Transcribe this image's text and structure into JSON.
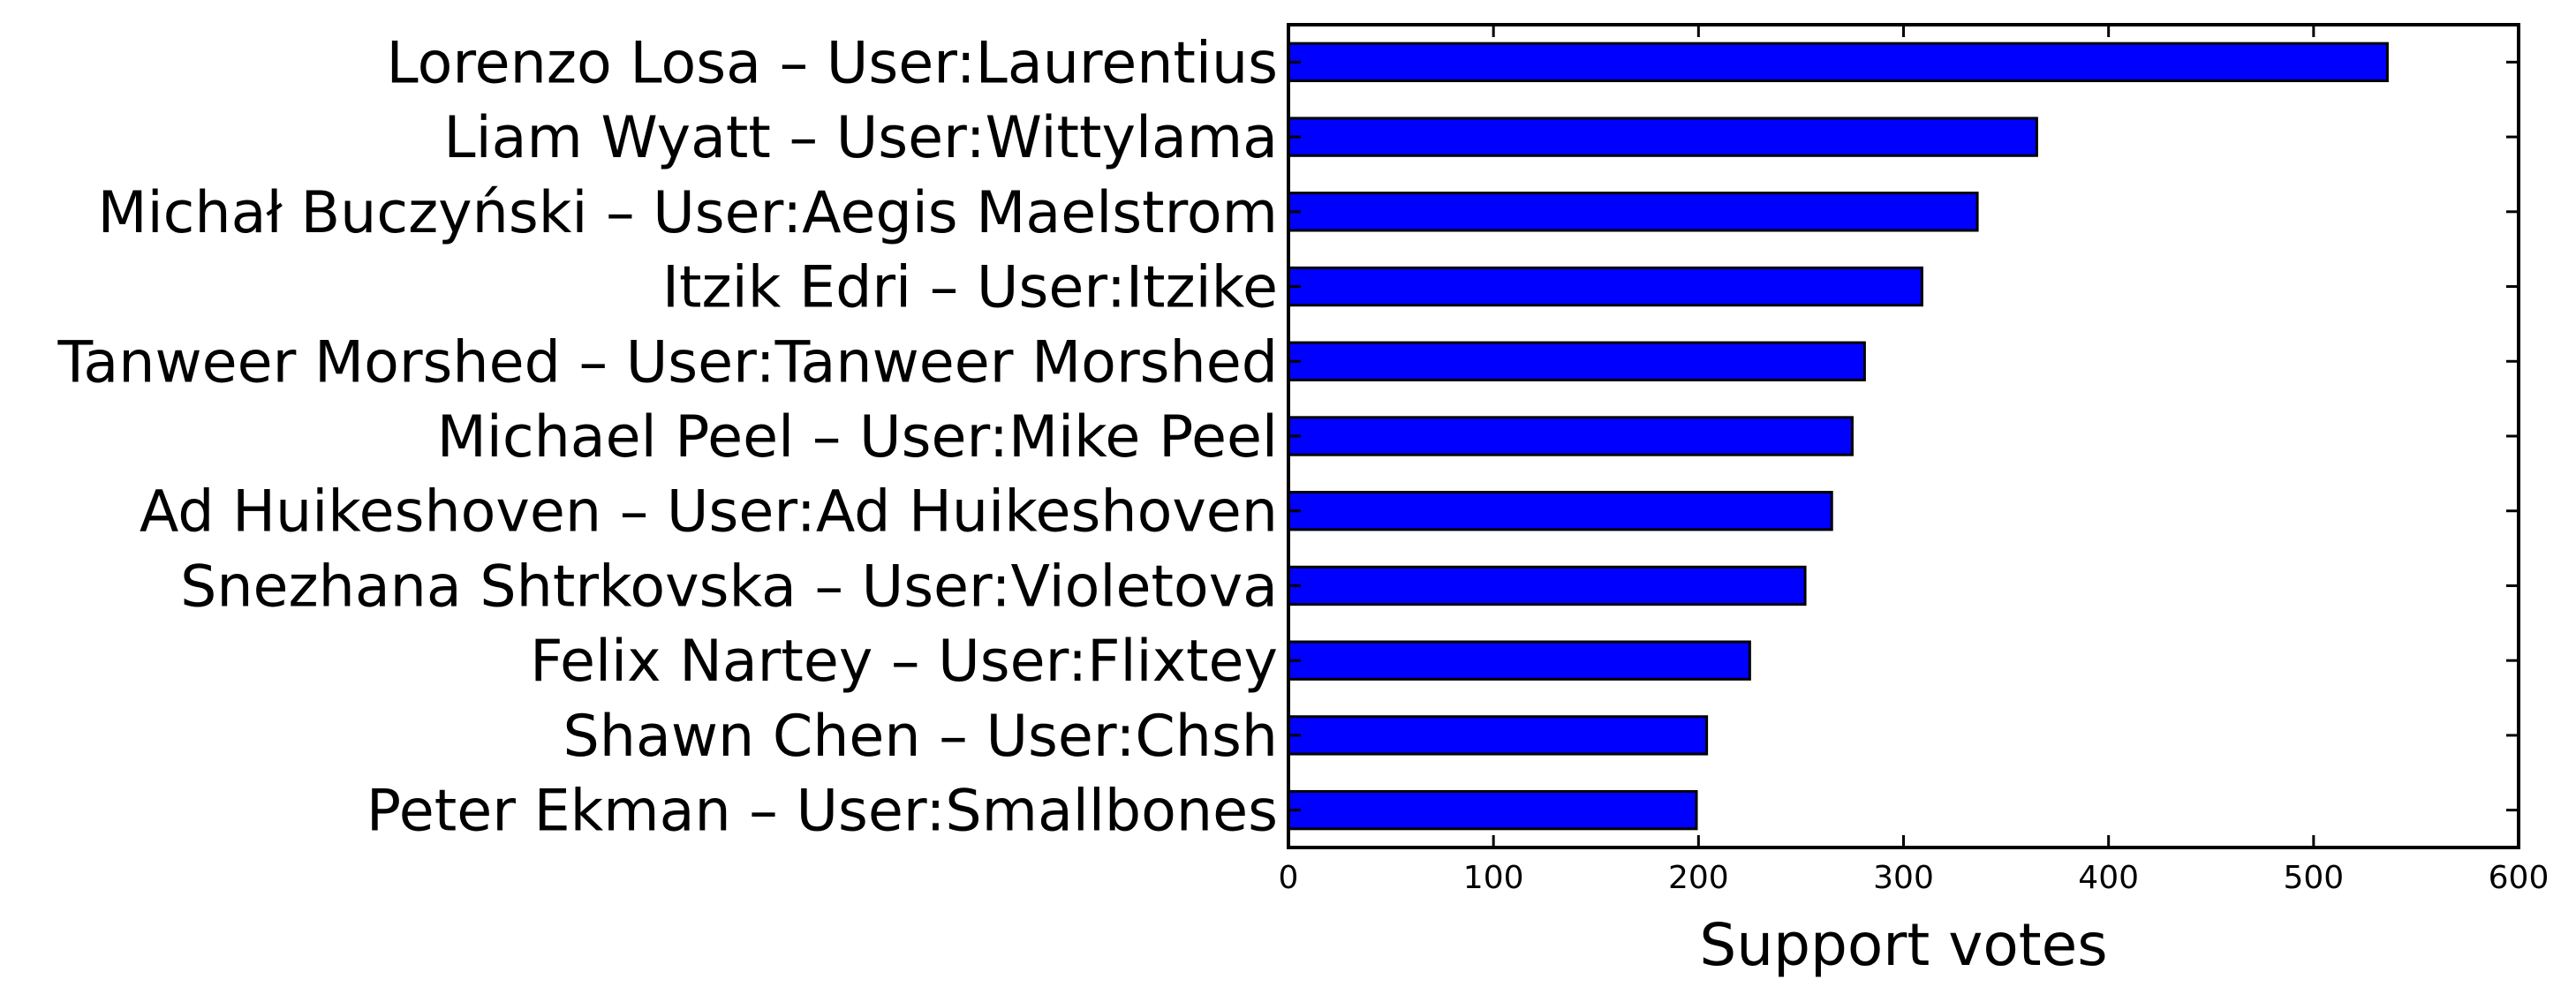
{
  "chart_data": {
    "type": "bar",
    "orientation": "horizontal",
    "title": "",
    "xlabel": "Support votes",
    "ylabel": "",
    "xlim": [
      0,
      600
    ],
    "xticks": [
      0,
      100,
      200,
      300,
      400,
      500,
      600
    ],
    "grid": false,
    "bar_color": "#0000ff",
    "categories": [
      "Lorenzo Losa – User:Laurentius",
      "Liam Wyatt – User:Wittylama",
      "Michał Buczyński – User:Aegis Maelstrom",
      "Itzik Edri – User:Itzike",
      "Tanweer Morshed – User:Tanweer Morshed",
      "Michael Peel – User:Mike Peel",
      "Ad Huikeshoven – User:Ad Huikeshoven",
      "Snezhana Shtrkovska – User:Violetova",
      "Felix Nartey – User:Flixtey",
      "Shawn Chen – User:Chsh",
      "Peter Ekman – User:Smallbones"
    ],
    "values": [
      536,
      365,
      336,
      309,
      281,
      275,
      265,
      252,
      225,
      204,
      199
    ]
  }
}
